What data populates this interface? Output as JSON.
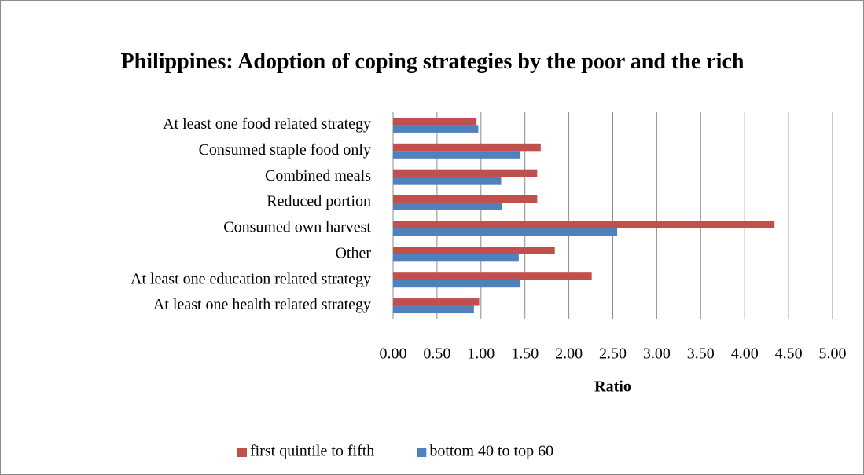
{
  "chart_data": {
    "type": "bar",
    "orientation": "horizontal",
    "title": "Philippines: Adoption of coping strategies by the poor and the rich",
    "x_label": "Ratio",
    "categories": [
      "At least one food related strategy",
      "Consumed staple food only",
      "Combined meals",
      "Reduced portion",
      "Consumed own harvest",
      "Other",
      "At least one education related strategy",
      "At least one health related strategy"
    ],
    "series": [
      {
        "name": "first quintile to fifth",
        "color": "#c0504d",
        "values": [
          0.95,
          1.68,
          1.64,
          1.64,
          4.34,
          1.84,
          2.26,
          0.98
        ]
      },
      {
        "name": "bottom 40 to top 60",
        "color": "#4f81bd",
        "values": [
          0.97,
          1.45,
          1.23,
          1.24,
          2.55,
          1.43,
          1.45,
          0.92
        ]
      }
    ],
    "xlim": [
      0,
      5
    ],
    "xticks": [
      {
        "value": 0,
        "label": "0.00"
      },
      {
        "value": 0.5,
        "label": "0.50"
      },
      {
        "value": 1,
        "label": "1.00"
      },
      {
        "value": 1.5,
        "label": "1.50"
      },
      {
        "value": 2,
        "label": "2.00"
      },
      {
        "value": 2.5,
        "label": "2.50"
      },
      {
        "value": 3,
        "label": "3.00"
      },
      {
        "value": 3.5,
        "label": "3.50"
      },
      {
        "value": 4,
        "label": "4.00"
      },
      {
        "value": 4.5,
        "label": "4.50"
      },
      {
        "value": 5,
        "label": "5.00"
      }
    ],
    "grid": true,
    "legend": "bottom"
  }
}
